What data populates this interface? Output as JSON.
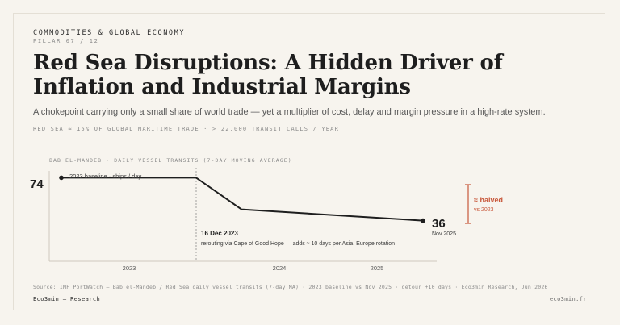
{
  "header": {
    "kicker": "COMMODITIES & GLOBAL ECONOMY",
    "pillar": "PILLAR 07 / 12",
    "title": "Red Sea Disruptions: A Hidden Driver of Inflation and Industrial Margins",
    "subtitle": "A chokepoint carrying only a small share of world trade — yet a multiplier of cost, delay and margin pressure in a high-rate system.",
    "stats": "RED SEA ≈ 15% OF GLOBAL MARITIME TRADE  ·  > 22,000 TRANSIT CALLS / YEAR"
  },
  "chart_data": {
    "type": "line",
    "title": "BAB EL-MANDEB · DAILY VESSEL TRANSITS (7-DAY MOVING AVERAGE)",
    "x_ticks": [
      "2023",
      "2024",
      "2025"
    ],
    "series": [
      {
        "values": [
          74,
          74,
          46,
          36
        ],
        "x": [
          "2023-01",
          "2023-12-16",
          "2024-05",
          "2025-11"
        ]
      }
    ],
    "ylim": [
      0,
      80
    ],
    "start_label": "74",
    "end_label": "36",
    "end_sub": "Nov 2025",
    "baseline_note": "2023 baseline · ships / day",
    "event_date": "16 Dec 2023",
    "event_note": "rerouting via Cape of Good Hope — adds ≈ 10 days per Asia–Europe rotation",
    "change_label": "≈ halved",
    "change_sub": "vs 2023",
    "colors": {
      "line": "#1e1e1e",
      "accent": "#c8573a",
      "axis": "#b8b2a6"
    }
  },
  "footer": {
    "source": "Source: IMF PortWatch — Bab el-Mandeb / Red Sea daily vessel transits (7-day MA) · 2023 baseline vs Nov 2025 · detour +10 days · Eco3min Research, Jun 2026",
    "brand": "Eco3min — Research",
    "domain": "eco3min.fr"
  }
}
